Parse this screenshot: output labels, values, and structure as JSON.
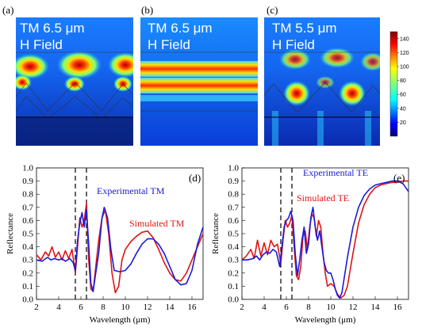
{
  "field_panels": [
    {
      "label": "(a)",
      "line1": "TM 6.5 μm",
      "line2": "H Field"
    },
    {
      "label": "(b)",
      "line1": "TM 6.5 μm",
      "line2": "H Field"
    },
    {
      "label": "(c)",
      "line1": "TM 5.5 μm",
      "line2": "H Field"
    }
  ],
  "colorbar": {
    "ticks": [
      "20",
      "40",
      "60",
      "80",
      "100",
      "120",
      "140"
    ],
    "min": 0,
    "max": 150
  },
  "colors": {
    "experimental": "#1a1adb",
    "simulated": "#e01414",
    "dashed": "#222222"
  },
  "chart_data": [
    {
      "type": "line",
      "panel_label": "(d)",
      "xlabel": "Wavelength (μm)",
      "ylabel": "Reflectance",
      "xlim": [
        2,
        17
      ],
      "ylim": [
        0.0,
        1.0
      ],
      "xticks": [
        2,
        4,
        6,
        8,
        10,
        12,
        14,
        16
      ],
      "yticks": [
        0.0,
        0.1,
        0.2,
        0.3,
        0.4,
        0.5,
        0.6,
        0.7,
        0.8,
        0.9,
        1.0
      ],
      "dashed_lines_x": [
        5.5,
        6.5
      ],
      "annotations": [
        "Experimental TM",
        "Simulated TM"
      ],
      "series": [
        {
          "name": "Experimental TM",
          "x": [
            2,
            2.5,
            3,
            3.3,
            3.6,
            4,
            4.3,
            4.6,
            5,
            5.3,
            5.5,
            5.7,
            5.9,
            6.1,
            6.3,
            6.5,
            6.7,
            6.9,
            7.1,
            7.3,
            7.6,
            7.9,
            8.1,
            8.4,
            8.7,
            9,
            9.5,
            10,
            10.5,
            11,
            11.5,
            12,
            12.5,
            13,
            13.5,
            14,
            14.5,
            15,
            15.5,
            16,
            16.5,
            17
          ],
          "y": [
            0.3,
            0.29,
            0.32,
            0.3,
            0.31,
            0.3,
            0.31,
            0.29,
            0.31,
            0.28,
            0.22,
            0.45,
            0.58,
            0.66,
            0.55,
            0.68,
            0.42,
            0.12,
            0.06,
            0.18,
            0.35,
            0.62,
            0.7,
            0.62,
            0.38,
            0.22,
            0.21,
            0.22,
            0.27,
            0.35,
            0.42,
            0.46,
            0.46,
            0.42,
            0.35,
            0.25,
            0.15,
            0.11,
            0.12,
            0.22,
            0.42,
            0.55
          ]
        },
        {
          "name": "Simulated TM",
          "x": [
            2,
            2.4,
            2.8,
            3.1,
            3.4,
            3.7,
            4,
            4.3,
            4.6,
            4.9,
            5.2,
            5.5,
            5.7,
            5.9,
            6.1,
            6.3,
            6.5,
            6.7,
            6.9,
            7.1,
            7.3,
            7.6,
            7.9,
            8.2,
            8.5,
            8.8,
            9.1,
            9.4,
            9.7,
            10,
            10.5,
            11,
            11.5,
            12,
            12.5,
            13,
            13.5,
            14,
            14.5,
            15,
            15.5,
            16,
            16.5,
            17
          ],
          "y": [
            0.34,
            0.3,
            0.36,
            0.33,
            0.4,
            0.32,
            0.36,
            0.3,
            0.37,
            0.31,
            0.38,
            0.2,
            0.4,
            0.62,
            0.55,
            0.6,
            0.73,
            0.3,
            0.08,
            0.06,
            0.22,
            0.45,
            0.62,
            0.68,
            0.5,
            0.2,
            0.05,
            0.1,
            0.3,
            0.38,
            0.44,
            0.48,
            0.51,
            0.52,
            0.47,
            0.38,
            0.28,
            0.2,
            0.15,
            0.14,
            0.2,
            0.3,
            0.4,
            0.5
          ]
        }
      ]
    },
    {
      "type": "line",
      "panel_label": "(e)",
      "xlabel": "Wavelength (μm)",
      "ylabel": "Reflectance",
      "xlim": [
        2,
        17
      ],
      "ylim": [
        0.0,
        1.0
      ],
      "xticks": [
        2,
        4,
        6,
        8,
        10,
        12,
        14,
        16
      ],
      "yticks": [
        0.0,
        0.1,
        0.2,
        0.3,
        0.4,
        0.5,
        0.6,
        0.7,
        0.8,
        0.9,
        1.0
      ],
      "dashed_lines_x": [
        5.5,
        6.5
      ],
      "annotations": [
        "Experimental TE",
        "Simulated TE"
      ],
      "series": [
        {
          "name": "Experimental TE",
          "x": [
            2,
            2.5,
            3,
            3.3,
            3.6,
            3.9,
            4.2,
            4.5,
            4.8,
            5.1,
            5.4,
            5.6,
            5.8,
            6,
            6.2,
            6.4,
            6.6,
            6.8,
            7,
            7.2,
            7.4,
            7.6,
            7.8,
            8,
            8.2,
            8.4,
            8.6,
            8.8,
            9,
            9.2,
            9.4,
            9.6,
            9.8,
            10,
            10.2,
            10.4,
            10.6,
            10.8,
            11,
            11.5,
            12,
            12.5,
            13,
            13.5,
            14,
            14.5,
            15,
            15.5,
            16,
            16.5,
            17
          ],
          "y": [
            0.3,
            0.3,
            0.31,
            0.33,
            0.3,
            0.34,
            0.36,
            0.35,
            0.38,
            0.36,
            0.25,
            0.4,
            0.55,
            0.6,
            0.62,
            0.67,
            0.6,
            0.35,
            0.18,
            0.3,
            0.45,
            0.55,
            0.35,
            0.42,
            0.62,
            0.7,
            0.55,
            0.45,
            0.52,
            0.4,
            0.28,
            0.22,
            0.2,
            0.2,
            0.15,
            0.08,
            0.03,
            0.01,
            0.05,
            0.32,
            0.55,
            0.7,
            0.79,
            0.84,
            0.87,
            0.88,
            0.89,
            0.9,
            0.9,
            0.88,
            0.82
          ]
        },
        {
          "name": "Simulated TE",
          "x": [
            2,
            2.4,
            2.8,
            3.1,
            3.4,
            3.7,
            4,
            4.3,
            4.6,
            4.9,
            5.2,
            5.5,
            5.7,
            5.9,
            6.1,
            6.3,
            6.5,
            6.7,
            6.9,
            7.1,
            7.3,
            7.5,
            7.7,
            7.9,
            8.1,
            8.3,
            8.5,
            8.7,
            8.9,
            9.1,
            9.3,
            9.5,
            9.7,
            10,
            10.3,
            10.6,
            10.9,
            11.2,
            11.5,
            12,
            12.5,
            13,
            13.5,
            14,
            14.5,
            15,
            15.5,
            16,
            16.5,
            17
          ],
          "y": [
            0.3,
            0.33,
            0.38,
            0.31,
            0.45,
            0.33,
            0.43,
            0.34,
            0.45,
            0.4,
            0.42,
            0.27,
            0.45,
            0.6,
            0.55,
            0.58,
            0.64,
            0.4,
            0.18,
            0.15,
            0.25,
            0.48,
            0.52,
            0.38,
            0.55,
            0.65,
            0.62,
            0.48,
            0.6,
            0.55,
            0.35,
            0.2,
            0.1,
            0.12,
            0.1,
            0.04,
            0.01,
            0.03,
            0.1,
            0.35,
            0.58,
            0.72,
            0.8,
            0.85,
            0.87,
            0.88,
            0.89,
            0.89,
            0.9,
            0.9
          ]
        }
      ]
    }
  ]
}
